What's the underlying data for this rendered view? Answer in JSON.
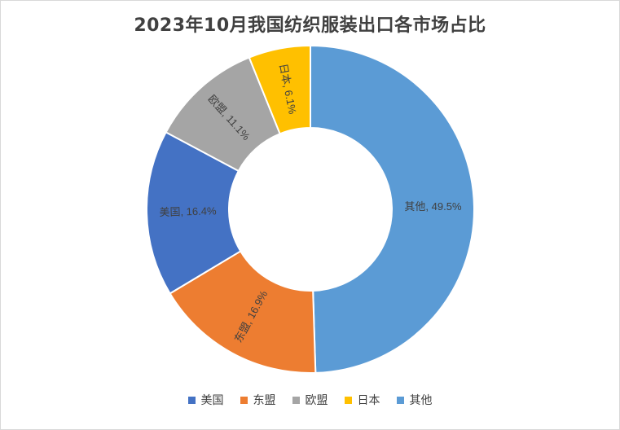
{
  "chart_data": {
    "type": "pie",
    "variant": "donut",
    "title": "2023年10月我国纺织服装出口各市场占比",
    "unit": "%",
    "slices": [
      {
        "name": "其他",
        "value": 49.5,
        "label": "其他, 49.5%",
        "color": "#5B9BD5"
      },
      {
        "name": "东盟",
        "value": 16.9,
        "label": "东盟, 16.9%",
        "color": "#ED7D31"
      },
      {
        "name": "美国",
        "value": 16.4,
        "label": "美国, 16.4%",
        "color": "#4472C4"
      },
      {
        "name": "欧盟",
        "value": 11.1,
        "label": "欧盟, 11.1%",
        "color": "#A5A5A5"
      },
      {
        "name": "日本",
        "value": 6.1,
        "label": "日本, 6.1%",
        "color": "#FFC000"
      }
    ],
    "legend": {
      "position": "bottom",
      "items": [
        {
          "name": "美国",
          "color": "#4472C4"
        },
        {
          "name": "东盟",
          "color": "#ED7D31"
        },
        {
          "name": "欧盟",
          "color": "#A5A5A5"
        },
        {
          "name": "日本",
          "color": "#FFC000"
        },
        {
          "name": "其他",
          "color": "#5B9BD5"
        }
      ]
    }
  }
}
